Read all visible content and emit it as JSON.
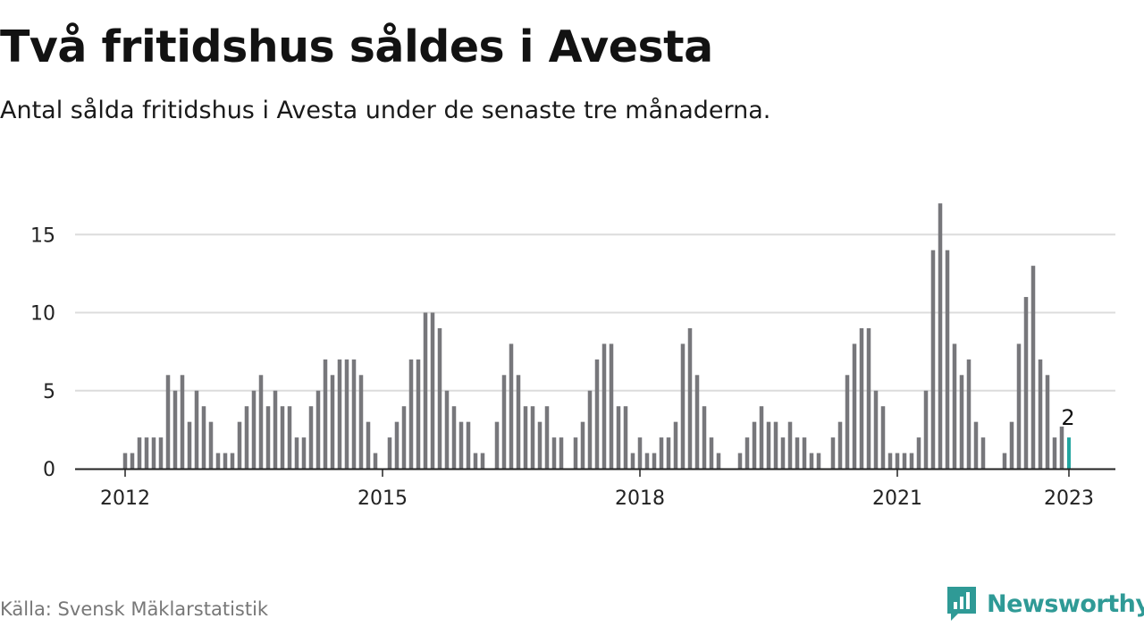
{
  "title": "Två fritidshus såldes i Avesta",
  "subtitle": "Antal sålda fritidshus i Avesta under de senaste tre månaderna.",
  "source": "Källa: Svensk Mäklarstatistik",
  "brand": {
    "name": "Newsworthy",
    "icon": "newsworthy-logo-icon",
    "color": "#2f9a96"
  },
  "colors": {
    "bar": "#77777b",
    "highlight": "#23a5a0",
    "grid": "#dcdcdc",
    "axis": "#222222"
  },
  "chart_data": {
    "type": "bar",
    "ylim": [
      0,
      17
    ],
    "yticks": [
      0,
      5,
      10,
      15
    ],
    "xticks": [
      {
        "label": "2012",
        "year": 2012
      },
      {
        "label": "2015",
        "year": 2015
      },
      {
        "label": "2018",
        "year": 2018
      },
      {
        "label": "2021",
        "year": 2021
      },
      {
        "label": "2023",
        "year": 2023
      }
    ],
    "grid": true,
    "start": "2012-01",
    "end": "2023-01",
    "values": [
      1,
      1,
      2,
      2,
      2,
      2,
      6,
      5,
      6,
      3,
      5,
      4,
      3,
      1,
      1,
      1,
      3,
      4,
      5,
      6,
      4,
      5,
      4,
      4,
      2,
      2,
      4,
      5,
      7,
      6,
      7,
      7,
      7,
      6,
      3,
      1,
      0,
      2,
      3,
      4,
      7,
      7,
      10,
      10,
      9,
      5,
      4,
      3,
      3,
      1,
      1,
      0,
      3,
      6,
      8,
      6,
      4,
      4,
      3,
      4,
      2,
      2,
      0,
      2,
      3,
      5,
      7,
      8,
      8,
      4,
      4,
      1,
      2,
      1,
      1,
      2,
      2,
      3,
      8,
      9,
      6,
      4,
      2,
      1,
      0,
      0,
      1,
      2,
      3,
      4,
      3,
      3,
      2,
      3,
      2,
      2,
      1,
      1,
      0,
      2,
      3,
      6,
      8,
      9,
      9,
      5,
      4,
      1,
      1,
      1,
      1,
      2,
      5,
      14,
      17,
      14,
      8,
      6,
      7,
      3,
      2,
      0,
      0,
      1,
      3,
      8,
      11,
      13,
      7,
      6,
      2,
      2.7,
      2
    ],
    "highlight_last": true,
    "annotation": {
      "label": "2",
      "value": 2
    }
  }
}
